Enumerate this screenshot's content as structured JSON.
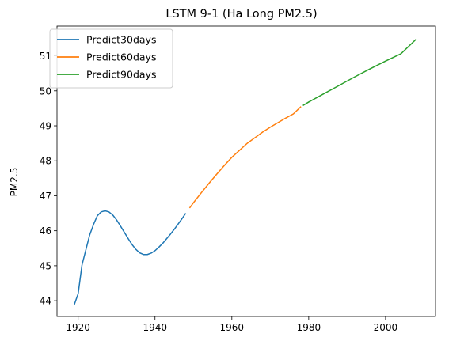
{
  "chart_data": {
    "type": "line",
    "title": "LSTM 9-1 (Ha Long PM2.5)",
    "xlabel": "",
    "ylabel": "PM2.5",
    "xlim": [
      1914.5,
      2013
    ],
    "ylim": [
      43.55,
      51.85
    ],
    "xticks": [
      1920,
      1940,
      1960,
      1980,
      2000
    ],
    "yticks": [
      44,
      45,
      46,
      47,
      48,
      49,
      50,
      51
    ],
    "grid": false,
    "legend_position": "top-left",
    "series": [
      {
        "name": "Predict30days",
        "color": "#1f77b4",
        "x": [
          1919,
          1920,
          1921,
          1922,
          1923,
          1924,
          1925,
          1926,
          1927,
          1928,
          1929,
          1930,
          1931,
          1932,
          1933,
          1934,
          1935,
          1936,
          1937,
          1938,
          1939,
          1940,
          1941,
          1942,
          1943,
          1944,
          1945,
          1946,
          1947,
          1948
        ],
        "y": [
          43.89,
          44.2,
          45.02,
          45.45,
          45.88,
          46.18,
          46.43,
          46.54,
          46.57,
          46.54,
          46.45,
          46.31,
          46.14,
          45.96,
          45.78,
          45.61,
          45.47,
          45.37,
          45.32,
          45.32,
          45.36,
          45.43,
          45.53,
          45.64,
          45.77,
          45.9,
          46.04,
          46.19,
          46.34,
          46.5
        ]
      },
      {
        "name": "Predict60days",
        "color": "#ff7f0e",
        "x": [
          1949,
          1950,
          1952,
          1954,
          1956,
          1958,
          1960,
          1962,
          1964,
          1966,
          1968,
          1970,
          1972,
          1974,
          1976,
          1978
        ],
        "y": [
          46.65,
          46.8,
          47.08,
          47.35,
          47.61,
          47.86,
          48.1,
          48.3,
          48.5,
          48.66,
          48.82,
          48.96,
          49.09,
          49.22,
          49.34,
          49.55
        ]
      },
      {
        "name": "Predict90days",
        "color": "#2ca02c",
        "x": [
          1978.5,
          1980,
          1984,
          1988,
          1992,
          1996,
          2000,
          2004,
          2008
        ],
        "y": [
          49.58,
          49.68,
          49.92,
          50.16,
          50.4,
          50.63,
          50.85,
          51.06,
          51.48
        ]
      }
    ]
  }
}
